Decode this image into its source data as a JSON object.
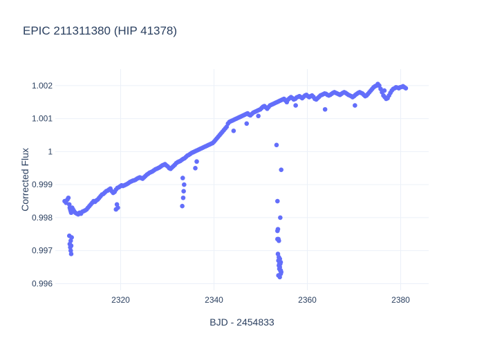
{
  "chart_data": {
    "type": "scatter",
    "title": "EPIC 211311380 (HIP 41378)",
    "xlabel": "BJD - 2454833",
    "ylabel": "Corrected Flux",
    "xlim": [
      2306,
      2386
    ],
    "ylim": [
      0.9958,
      1.0025
    ],
    "x_ticks": [
      2320,
      2340,
      2360,
      2380
    ],
    "x_tick_labels": [
      "2320",
      "2340",
      "2360",
      "2380"
    ],
    "y_ticks": [
      0.996,
      0.997,
      0.998,
      0.999,
      1.0,
      1.001,
      1.002
    ],
    "y_tick_labels": [
      "0.996",
      "0.997",
      "0.998",
      "0.999",
      "1",
      "1.001",
      "1.002"
    ],
    "grid": true,
    "marker_color": "#636efa",
    "series": [
      {
        "name": "",
        "x": [
          2308.0,
          2308.3,
          2308.6,
          2308.8,
          2309.0,
          2309.1,
          2309.2,
          2309.3,
          2309.4,
          2309.6,
          2309.8,
          2310.0,
          2310.3,
          2310.6,
          2310.9,
          2311.2,
          2311.5,
          2311.8,
          2312.1,
          2312.4,
          2312.7,
          2313.0,
          2313.3,
          2313.6,
          2313.9,
          2314.2,
          2314.5,
          2314.8,
          2315.1,
          2315.4,
          2315.7,
          2316.0,
          2316.3,
          2316.6,
          2316.9,
          2317.2,
          2317.5,
          2317.8,
          2318.1,
          2318.4,
          2318.7,
          2319.0,
          2319.3,
          2319.6,
          2319.9,
          2320.2,
          2320.5,
          2320.8,
          2321.1,
          2321.4,
          2321.7,
          2322.0,
          2322.3,
          2322.6,
          2322.9,
          2323.2,
          2323.5,
          2323.8,
          2324.1,
          2324.4,
          2324.7,
          2325.0,
          2325.3,
          2325.6,
          2325.9,
          2326.2,
          2326.5,
          2326.8,
          2327.1,
          2327.4,
          2327.7,
          2328.0,
          2328.3,
          2328.6,
          2328.9,
          2329.2,
          2329.5,
          2329.8,
          2330.1,
          2330.4,
          2330.7,
          2331.0,
          2331.3,
          2331.6,
          2331.9,
          2332.2,
          2332.5,
          2332.8,
          2333.1,
          2333.4,
          2333.7,
          2334.0,
          2334.3,
          2334.6,
          2334.9,
          2335.2,
          2335.5,
          2335.8,
          2336.1,
          2336.4,
          2336.7,
          2337.0,
          2337.3,
          2337.6,
          2337.9,
          2338.2,
          2338.5,
          2338.8,
          2339.1,
          2339.4,
          2339.7,
          2340.0,
          2340.3,
          2340.6,
          2340.9,
          2341.2,
          2341.5,
          2341.8,
          2342.1,
          2342.4,
          2342.7,
          2343.0,
          2343.3,
          2343.6,
          2343.9,
          2344.2,
          2344.5,
          2344.8,
          2345.1,
          2345.4,
          2345.7,
          2346.0,
          2346.3,
          2346.6,
          2346.9,
          2347.2,
          2347.5,
          2347.8,
          2348.1,
          2348.4,
          2348.7,
          2349.0,
          2349.3,
          2349.6,
          2349.9,
          2350.2,
          2350.5,
          2350.8,
          2351.1,
          2351.4,
          2351.7,
          2352.0,
          2352.3,
          2352.6,
          2352.9,
          2353.2,
          2353.5,
          2353.8,
          2354.1,
          2354.4,
          2354.7,
          2355.0,
          2355.3,
          2355.6,
          2355.9,
          2356.2,
          2356.5,
          2356.8,
          2357.1,
          2357.4,
          2357.7,
          2358.0,
          2358.3,
          2358.6,
          2358.9,
          2359.2,
          2359.5,
          2359.8,
          2360.1,
          2360.4,
          2360.7,
          2361.0,
          2361.3,
          2361.6,
          2361.9,
          2362.2,
          2362.5,
          2362.8,
          2363.1,
          2363.4,
          2363.7,
          2364.0,
          2364.3,
          2364.6,
          2364.9,
          2365.2,
          2365.5,
          2365.8,
          2366.1,
          2366.4,
          2366.7,
          2367.0,
          2367.3,
          2367.6,
          2367.9,
          2368.2,
          2368.5,
          2368.8,
          2369.1,
          2369.4,
          2369.7,
          2370.0,
          2370.3,
          2370.6,
          2370.9,
          2371.2,
          2371.5,
          2371.8,
          2372.1,
          2372.4,
          2372.7,
          2373.0,
          2373.3,
          2373.6,
          2373.9,
          2374.2,
          2374.5,
          2374.8,
          2375.1,
          2375.4,
          2375.7,
          2376.0,
          2376.3,
          2376.6,
          2376.9,
          2377.2,
          2377.5,
          2377.8,
          2378.1,
          2378.4,
          2378.7,
          2379.0,
          2379.3,
          2379.6,
          2379.9,
          2380.2,
          2380.5,
          2380.8,
          2381.1,
          2309.0,
          2309.1,
          2309.2,
          2309.3,
          2309.4,
          2309.5,
          2309.3,
          2309.4,
          2319.0,
          2319.2,
          2319.4,
          2333.2,
          2333.4,
          2333.5,
          2333.6,
          2333.3,
          2336.0,
          2336.3,
          2344.2,
          2347.0,
          2349.5,
          2353.4,
          2353.6,
          2353.7,
          2353.8,
          2353.9,
          2354.0,
          2354.1,
          2354.2,
          2354.3,
          2354.4,
          2353.8,
          2353.9,
          2354.0,
          2354.1,
          2354.2,
          2353.7,
          2354.3,
          2353.6,
          2353.9,
          2354.2,
          2354.4,
          2353.8,
          2354.1,
          2353.6,
          2354.3,
          2357.5,
          2363.8,
          2370.2,
          2376.5
        ],
        "y": [
          0.9985,
          0.99845,
          0.99855,
          0.9986,
          0.9984,
          0.9983,
          0.99825,
          0.9982,
          0.99815,
          0.9983,
          0.99825,
          0.9982,
          0.99815,
          0.99812,
          0.9981,
          0.99815,
          0.99812,
          0.99818,
          0.9982,
          0.99822,
          0.99825,
          0.9983,
          0.99835,
          0.9984,
          0.99845,
          0.9985,
          0.99848,
          0.99852,
          0.99855,
          0.9986,
          0.99865,
          0.9987,
          0.99872,
          0.99876,
          0.9988,
          0.99882,
          0.99885,
          0.99888,
          0.9988,
          0.99875,
          0.99878,
          0.99885,
          0.9989,
          0.99892,
          0.99895,
          0.99898,
          0.99896,
          0.99898,
          0.999,
          0.99902,
          0.99905,
          0.99908,
          0.9991,
          0.99912,
          0.99913,
          0.99915,
          0.99918,
          0.9992,
          0.99922,
          0.9992,
          0.99918,
          0.99922,
          0.99926,
          0.9993,
          0.99933,
          0.99936,
          0.99938,
          0.9994,
          0.99943,
          0.99946,
          0.99948,
          0.9995,
          0.99952,
          0.99955,
          0.99958,
          0.9996,
          0.99962,
          0.99958,
          0.99955,
          0.9995,
          0.99948,
          0.99952,
          0.99956,
          0.9996,
          0.99965,
          0.99968,
          0.9997,
          0.99972,
          0.99975,
          0.99978,
          0.9998,
          0.99984,
          0.99988,
          0.9999,
          0.99993,
          0.99996,
          0.99998,
          1.0,
          1.00002,
          1.00004,
          1.00006,
          1.00008,
          1.0001,
          1.00012,
          1.00014,
          1.00016,
          1.00018,
          1.0002,
          1.00022,
          1.00024,
          1.00026,
          1.0003,
          1.00035,
          1.0004,
          1.00045,
          1.0005,
          1.00055,
          1.0006,
          1.00065,
          1.0007,
          1.00075,
          1.00085,
          1.0009,
          1.00092,
          1.00094,
          1.00096,
          1.00098,
          1.001,
          1.00102,
          1.00104,
          1.00106,
          1.00108,
          1.0011,
          1.00112,
          1.00114,
          1.00116,
          1.00112,
          1.0011,
          1.00114,
          1.00118,
          1.0012,
          1.00122,
          1.00124,
          1.00126,
          1.00128,
          1.00132,
          1.00136,
          1.00138,
          1.00134,
          1.0013,
          1.00135,
          1.0014,
          1.00142,
          1.00144,
          1.00146,
          1.00148,
          1.0015,
          1.00152,
          1.00154,
          1.00156,
          1.00158,
          1.0016,
          1.00155,
          1.0015,
          1.00158,
          1.00162,
          1.00165,
          1.00162,
          1.00158,
          1.0016,
          1.00164,
          1.00166,
          1.00168,
          1.00165,
          1.00162,
          1.00166,
          1.0017,
          1.00172,
          1.00168,
          1.00165,
          1.00168,
          1.0017,
          1.00166,
          1.0016,
          1.00158,
          1.00162,
          1.00166,
          1.0017,
          1.00172,
          1.00174,
          1.00176,
          1.00175,
          1.00172,
          1.0017,
          1.00172,
          1.00175,
          1.00178,
          1.0018,
          1.00178,
          1.00176,
          1.00174,
          1.00172,
          1.00175,
          1.00178,
          1.0018,
          1.00178,
          1.00175,
          1.00172,
          1.0017,
          1.00168,
          1.00165,
          1.00168,
          1.00172,
          1.00175,
          1.00178,
          1.0018,
          1.00178,
          1.00176,
          1.00172,
          1.00168,
          1.0017,
          1.00175,
          1.0018,
          1.00185,
          1.0019,
          1.00195,
          1.00198,
          1.002,
          1.00205,
          1.002,
          1.0019,
          1.0018,
          1.0017,
          1.00165,
          1.0016,
          1.00162,
          1.0017,
          1.00178,
          1.00185,
          1.0019,
          1.00192,
          1.00195,
          1.00194,
          1.00192,
          1.00195,
          1.00196,
          1.00198,
          1.00195,
          1.00192,
          0.99745,
          0.9972,
          0.9971,
          0.997,
          0.9969,
          0.9974,
          0.9973,
          0.99715,
          0.99825,
          0.9984,
          0.9983,
          0.99835,
          0.9986,
          0.9988,
          0.999,
          0.9992,
          0.9995,
          0.9997,
          1.00063,
          1.00085,
          1.00108,
          1.0002,
          0.9985,
          0.99765,
          0.99735,
          0.9968,
          0.9966,
          0.9965,
          0.9964,
          0.9963,
          0.99635,
          0.9967,
          0.99655,
          0.99645,
          0.99675,
          0.9966,
          0.9969,
          0.99665,
          0.9976,
          0.9973,
          0.998,
          0.99945,
          0.99625,
          0.9962,
          0.99735,
          0.9964,
          1.0014,
          1.00128,
          1.0014,
          1.00185
        ]
      }
    ]
  }
}
